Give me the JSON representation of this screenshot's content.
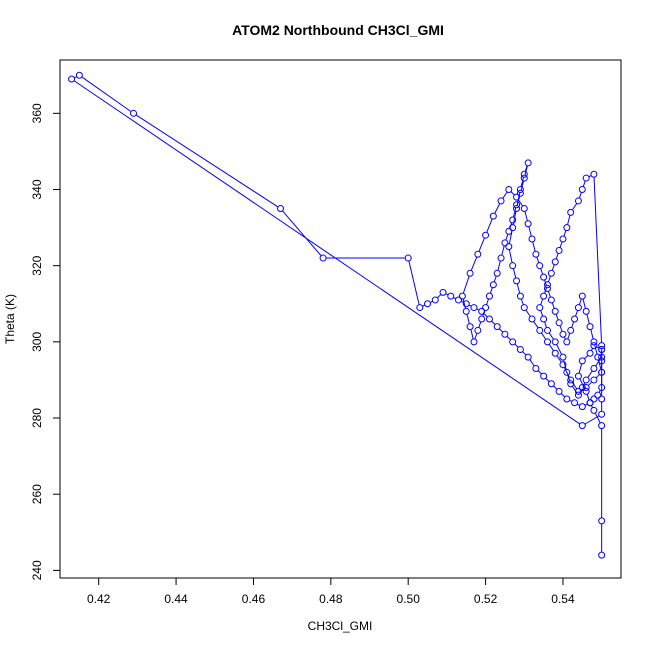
{
  "chart_data": {
    "type": "line",
    "title": "ATOM2 Northbound CH3Cl_GMI",
    "xlabel": "CH3Cl_GMI",
    "ylabel": "Theta (K)",
    "xlim": [
      0.41,
      0.555
    ],
    "ylim": [
      238,
      374
    ],
    "xticks": [
      0.42,
      0.44,
      0.46,
      0.48,
      0.5,
      0.52,
      0.54
    ],
    "xtick_labels": [
      "0.42",
      "0.44",
      "0.46",
      "0.48",
      "0.50",
      "0.52",
      "0.54"
    ],
    "yticks": [
      240,
      260,
      280,
      300,
      320,
      340,
      360
    ],
    "ytick_labels": [
      "240",
      "260",
      "280",
      "300",
      "320",
      "340",
      "360"
    ],
    "grid": false,
    "series_color": "#0000ff",
    "marker": "open-circle",
    "series": [
      {
        "x": [
          0.55,
          0.55,
          0.55,
          0.548,
          0.547,
          0.546,
          0.544,
          0.545,
          0.547,
          0.548,
          0.55,
          0.55,
          0.548,
          0.546,
          0.545,
          0.544,
          0.542,
          0.541,
          0.54,
          0.538,
          0.536,
          0.535,
          0.534,
          0.535,
          0.536,
          0.537,
          0.538,
          0.539,
          0.54,
          0.541,
          0.542,
          0.544,
          0.545,
          0.546,
          0.548,
          0.55,
          0.55,
          0.55,
          0.548,
          0.546,
          0.544,
          0.542,
          0.54,
          0.538,
          0.536,
          0.534,
          0.532,
          0.53,
          0.529,
          0.528,
          0.527,
          0.526,
          0.527,
          0.528,
          0.529,
          0.53,
          0.531,
          0.53,
          0.529,
          0.528,
          0.527,
          0.526,
          0.525,
          0.524,
          0.523,
          0.522,
          0.521,
          0.52,
          0.519,
          0.518,
          0.517,
          0.516,
          0.515,
          0.514,
          0.516,
          0.518,
          0.52,
          0.522,
          0.524,
          0.526,
          0.528,
          0.53,
          0.531,
          0.532,
          0.533,
          0.534,
          0.535,
          0.536,
          0.537,
          0.538,
          0.539,
          0.54,
          0.541,
          0.542,
          0.543,
          0.544,
          0.545,
          0.546,
          0.547,
          0.548,
          0.549,
          0.55,
          0.55,
          0.549,
          0.548,
          0.547,
          0.545,
          0.543,
          0.541,
          0.539,
          0.537,
          0.535,
          0.533,
          0.531,
          0.529,
          0.527,
          0.525,
          0.523,
          0.521,
          0.519,
          0.517,
          0.515,
          0.513,
          0.511,
          0.509,
          0.507,
          0.505,
          0.503,
          0.5,
          0.478,
          0.467,
          0.429,
          0.415,
          0.413,
          0.545,
          0.55,
          0.55,
          0.55
        ],
        "y": [
          244,
          253,
          278,
          282,
          284,
          287,
          291,
          295,
          297,
          299,
          298,
          296,
          293,
          290,
          288,
          286,
          289,
          292,
          296,
          300,
          303,
          306,
          309,
          312,
          315,
          318,
          321,
          324,
          327,
          330,
          334,
          337,
          340,
          343,
          344,
          299,
          295,
          292,
          290,
          288,
          287,
          290,
          294,
          297,
          300,
          303,
          306,
          309,
          312,
          316,
          320,
          325,
          330,
          335,
          340,
          344,
          347,
          343,
          339,
          336,
          332,
          329,
          326,
          322,
          318,
          315,
          312,
          309,
          306,
          303,
          300,
          304,
          308,
          312,
          318,
          323,
          328,
          333,
          337,
          340,
          338,
          335,
          331,
          327,
          323,
          320,
          317,
          314,
          311,
          308,
          305,
          302,
          300,
          303,
          306,
          309,
          312,
          308,
          304,
          300,
          296,
          292,
          288,
          286,
          285,
          284,
          283,
          284,
          285,
          287,
          289,
          291,
          293,
          296,
          298,
          300,
          302,
          304,
          306,
          308,
          309,
          310,
          311,
          312,
          313,
          311,
          310,
          309,
          322,
          322,
          335,
          360,
          370,
          369,
          278,
          281,
          285,
          298
        ]
      }
    ]
  }
}
